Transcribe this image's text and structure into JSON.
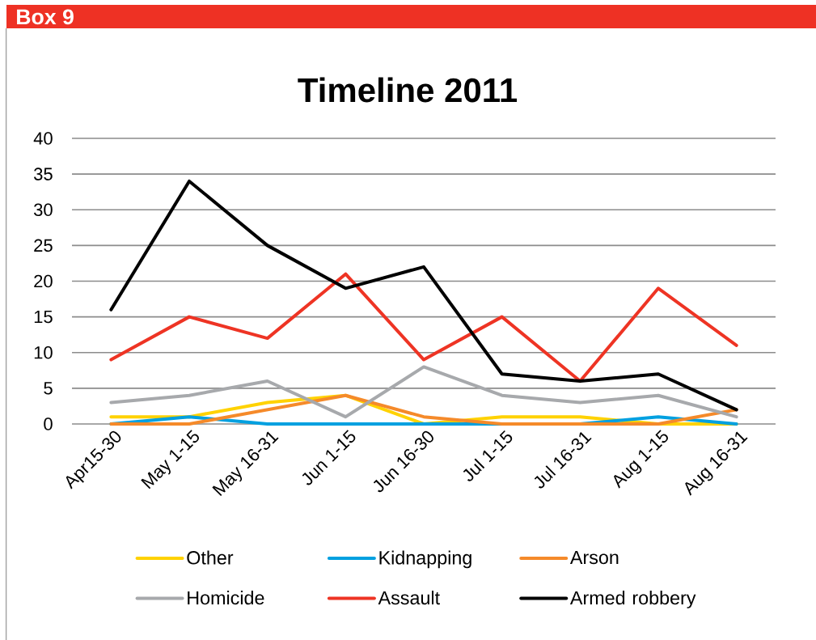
{
  "chart_data": {
    "type": "line",
    "title": "Timeline 2011",
    "annotations": [
      "Box 9"
    ],
    "categories": [
      "Apr15-30",
      "May 1-15",
      "May 16-31",
      "Jun 1-15",
      "Jun 16-30",
      "Jul 1-15",
      "Jul 16-31",
      "Aug 1-15",
      "Aug 16-31"
    ],
    "series": [
      {
        "name": "Other",
        "color": "#ffd200",
        "values": [
          1,
          1,
          3,
          4,
          0,
          1,
          1,
          0,
          0
        ]
      },
      {
        "name": "Kidnapping",
        "color": "#00a0e0",
        "values": [
          0,
          1,
          0,
          0,
          0,
          0,
          0,
          1,
          0
        ]
      },
      {
        "name": "Arson",
        "color": "#f58a2a",
        "values": [
          0,
          0,
          2,
          4,
          1,
          0,
          0,
          0,
          2
        ]
      },
      {
        "name": "Homicide",
        "color": "#a7a9ac",
        "values": [
          3,
          4,
          6,
          1,
          8,
          4,
          3,
          4,
          1
        ]
      },
      {
        "name": "Assault",
        "color": "#ee3424",
        "values": [
          9,
          15,
          12,
          21,
          9,
          15,
          6,
          19,
          11
        ]
      },
      {
        "name": "Armed robbery",
        "color": "#000000",
        "values": [
          16,
          34,
          25,
          19,
          22,
          7,
          6,
          7,
          2
        ]
      }
    ],
    "ylim": [
      0,
      40
    ],
    "yticks": [
      0,
      5,
      10,
      15,
      20,
      25,
      30,
      35,
      40
    ],
    "grid": "y",
    "legend": "bottom"
  }
}
